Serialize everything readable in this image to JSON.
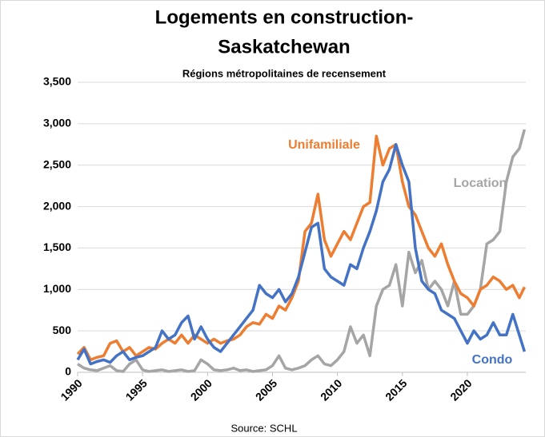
{
  "chart_data": {
    "type": "line",
    "title": [
      "Logements en construction-",
      "Saskatchewan"
    ],
    "subtitle": "Régions métropolitaines de recensement",
    "source": "Source: SCHL",
    "x": [
      1990,
      1990.5,
      1991,
      1991.5,
      1992,
      1992.5,
      1993,
      1993.5,
      1994,
      1994.5,
      1995,
      1995.5,
      1996,
      1996.5,
      1997,
      1997.5,
      1998,
      1998.5,
      1999,
      1999.5,
      2000,
      2000.5,
      2001,
      2001.5,
      2002,
      2002.5,
      2003,
      2003.5,
      2004,
      2004.5,
      2005,
      2005.5,
      2006,
      2006.5,
      2007,
      2007.5,
      2008,
      2008.5,
      2009,
      2009.5,
      2010,
      2010.5,
      2011,
      2011.5,
      2012,
      2012.5,
      2013,
      2013.5,
      2014,
      2014.5,
      2015,
      2015.5,
      2016,
      2016.5,
      2017,
      2017.5,
      2018,
      2018.5,
      2019,
      2019.5,
      2020,
      2020.5,
      2021,
      2021.5,
      2022,
      2022.5,
      2023,
      2023.5,
      2024,
      2024.4
    ],
    "series": [
      {
        "name": "Location",
        "color": "#a5a5a5",
        "values": [
          100,
          50,
          30,
          20,
          50,
          80,
          20,
          10,
          100,
          150,
          30,
          10,
          20,
          30,
          10,
          20,
          30,
          10,
          20,
          150,
          100,
          30,
          20,
          30,
          50,
          20,
          30,
          10,
          20,
          30,
          80,
          200,
          50,
          30,
          50,
          80,
          150,
          200,
          100,
          80,
          150,
          250,
          550,
          350,
          450,
          200,
          800,
          1000,
          1050,
          1300,
          800,
          1450,
          1200,
          1350,
          1000,
          1100,
          1000,
          800,
          1100,
          700,
          700,
          800,
          1000,
          1550,
          1600,
          1700,
          2300,
          2600,
          2700,
          2930
        ]
      },
      {
        "name": "Unifamiliale",
        "color": "#ed7d31",
        "values": [
          220,
          300,
          150,
          180,
          200,
          350,
          380,
          250,
          300,
          200,
          250,
          300,
          280,
          350,
          400,
          350,
          450,
          350,
          450,
          400,
          350,
          400,
          350,
          380,
          400,
          450,
          550,
          600,
          580,
          700,
          650,
          800,
          750,
          900,
          1100,
          1700,
          1800,
          2150,
          1600,
          1400,
          1550,
          1700,
          1600,
          1800,
          2000,
          2050,
          2850,
          2500,
          2700,
          2750,
          2300,
          2000,
          1900,
          1700,
          1500,
          1400,
          1550,
          1300,
          1100,
          950,
          900,
          800,
          1000,
          1050,
          1150,
          1100,
          1000,
          1050,
          900,
          1030
        ]
      },
      {
        "name": "Condo",
        "color": "#4472c4",
        "values": [
          150,
          280,
          100,
          130,
          150,
          120,
          200,
          250,
          150,
          180,
          200,
          250,
          300,
          500,
          400,
          450,
          600,
          680,
          400,
          550,
          400,
          300,
          250,
          350,
          450,
          550,
          650,
          750,
          1050,
          950,
          900,
          1000,
          850,
          950,
          1150,
          1450,
          1750,
          1800,
          1250,
          1150,
          1100,
          1050,
          1300,
          1250,
          1500,
          1700,
          1950,
          2300,
          2450,
          2750,
          2500,
          2300,
          1500,
          1100,
          1000,
          950,
          750,
          700,
          650,
          500,
          350,
          500,
          400,
          450,
          600,
          450,
          450,
          700,
          450,
          250
        ]
      }
    ],
    "xlim": [
      1990,
      2024.5
    ],
    "xticks": [
      1990,
      1995,
      2000,
      2005,
      2010,
      2015,
      2020
    ],
    "ylim": [
      0,
      3500
    ],
    "yticks": [
      0,
      500,
      {
        "value": 1000,
        "label": "1,000"
      },
      {
        "value": 1500,
        "label": "1,500"
      },
      {
        "value": 2000,
        "label": "2,000"
      },
      {
        "value": 2500,
        "label": "2,500"
      },
      {
        "value": 3000,
        "label": "3,000"
      },
      {
        "value": 3500,
        "label": "3,500"
      }
    ],
    "grid": true
  }
}
